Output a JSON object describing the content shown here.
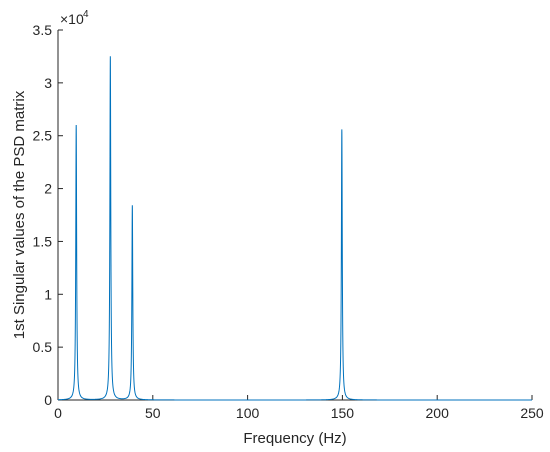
{
  "chart_data": {
    "type": "line",
    "title": "",
    "xlabel": "Frequency (Hz)",
    "ylabel": "1st Singular values of the PSD matrix",
    "xlim": [
      0,
      250
    ],
    "ylim": [
      0,
      35000
    ],
    "x_ticks": [
      0,
      50,
      100,
      150,
      200,
      250
    ],
    "y_ticks": [
      0,
      5000,
      10000,
      15000,
      20000,
      25000,
      30000,
      35000
    ],
    "y_tick_labels": [
      "0",
      "0.5",
      "1",
      "1.5",
      "2",
      "2.5",
      "3",
      "3.5"
    ],
    "x_tick_labels": [
      "0",
      "50",
      "100",
      "150",
      "200",
      "250"
    ],
    "y_exponent_label": "×10",
    "y_exponent_power": "4",
    "grid": false,
    "legend": "none",
    "series": [
      {
        "color": "#0072BD",
        "peaks": [
          {
            "x": 9.6,
            "y": 26000
          },
          {
            "x": 27.6,
            "y": 32500
          },
          {
            "x": 39.2,
            "y": 18400
          },
          {
            "x": 149.7,
            "y": 25600
          }
        ]
      }
    ]
  }
}
